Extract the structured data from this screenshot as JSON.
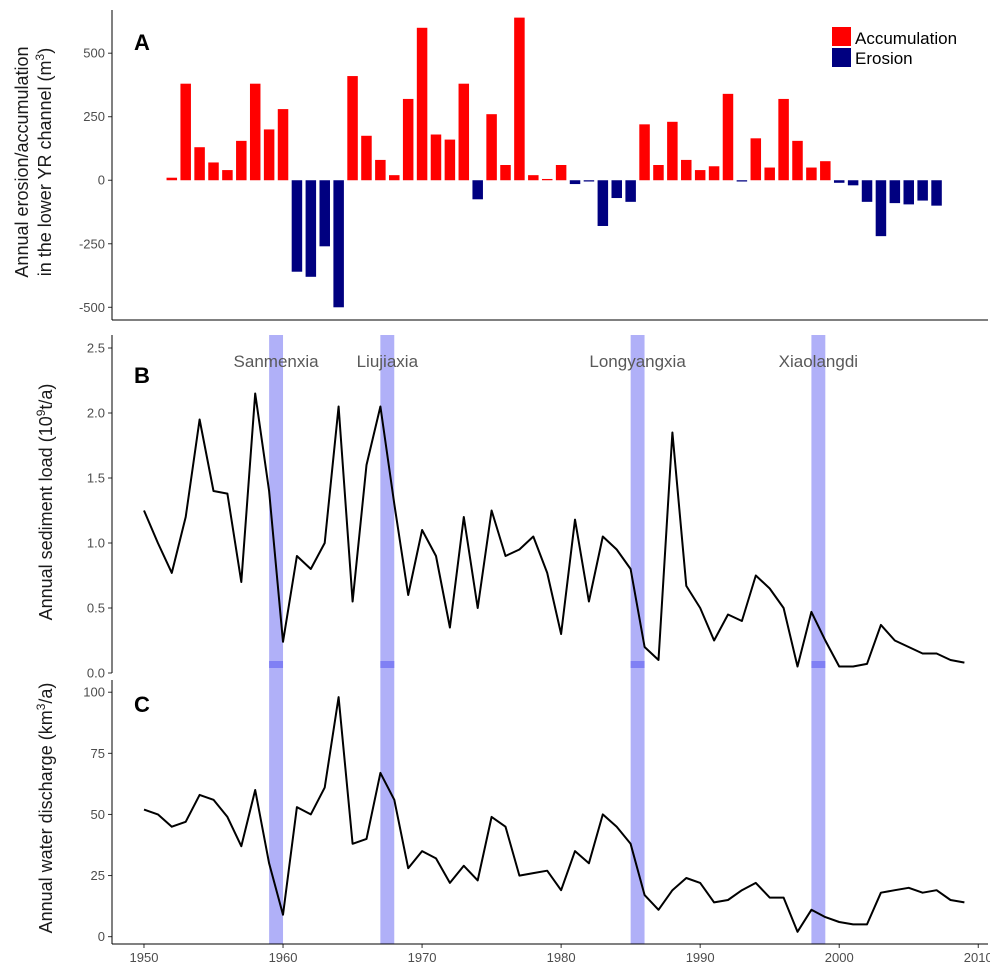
{
  "chart_data": [
    {
      "panel": "A",
      "type": "bar",
      "ylabel_line1": "Annual erosion/accumulation",
      "ylabel_line2_pre": "in the lower YR channel (m",
      "ylabel_sup": "3",
      "ylabel_post": ")",
      "ylim": [
        -550,
        670
      ],
      "yticks": [
        -500,
        -250,
        0,
        250,
        500
      ],
      "legend": [
        {
          "label": "Accumulation",
          "color": "#ff0000"
        },
        {
          "label": "Erosion",
          "color": "#000080"
        }
      ],
      "legend_position": "top-right",
      "x": [
        1952,
        1953,
        1954,
        1955,
        1956,
        1957,
        1958,
        1959,
        1960,
        1961,
        1962,
        1963,
        1964,
        1965,
        1966,
        1967,
        1968,
        1969,
        1970,
        1971,
        1972,
        1973,
        1974,
        1975,
        1976,
        1977,
        1978,
        1979,
        1980,
        1981,
        1982,
        1983,
        1984,
        1985,
        1986,
        1987,
        1988,
        1989,
        1990,
        1991,
        1992,
        1993,
        1994,
        1995,
        1996,
        1997,
        1998,
        1999,
        2000,
        2001,
        2002,
        2003,
        2004,
        2005,
        2006,
        2007,
        2008
      ],
      "values": [
        10,
        380,
        130,
        70,
        40,
        155,
        380,
        200,
        280,
        -360,
        -380,
        -260,
        -500,
        410,
        175,
        80,
        20,
        320,
        600,
        180,
        160,
        380,
        -75,
        260,
        60,
        640,
        20,
        5,
        60,
        -15,
        -5,
        -180,
        -70,
        -85,
        220,
        60,
        230,
        80,
        40,
        55,
        340,
        -5,
        165,
        50,
        320,
        155,
        50,
        75,
        -10,
        -20,
        -85,
        -220,
        -90,
        -95,
        -80,
        -100,
        0
      ]
    },
    {
      "panel": "B",
      "type": "line",
      "ylabel_pre": "Annual sediment load (10",
      "ylabel_sup": "9",
      "ylabel_post": "t/a)",
      "ylim": [
        0,
        2.6
      ],
      "yticks": [
        "0.0",
        "0.5",
        "1.0",
        "1.5",
        "2.0",
        "2.5"
      ],
      "x": [
        1950,
        1951,
        1952,
        1953,
        1954,
        1955,
        1956,
        1957,
        1958,
        1959,
        1960,
        1961,
        1962,
        1963,
        1964,
        1965,
        1966,
        1967,
        1968,
        1969,
        1970,
        1971,
        1972,
        1973,
        1974,
        1975,
        1976,
        1977,
        1978,
        1979,
        1980,
        1981,
        1982,
        1983,
        1984,
        1985,
        1986,
        1987,
        1988,
        1989,
        1990,
        1991,
        1992,
        1993,
        1994,
        1995,
        1996,
        1997,
        1998,
        1999,
        2000,
        2001,
        2002,
        2003,
        2004,
        2005,
        2006,
        2007,
        2008,
        2009
      ],
      "y": [
        1.25,
        1.0,
        0.77,
        1.2,
        1.95,
        1.4,
        1.38,
        0.7,
        2.15,
        1.4,
        0.24,
        0.9,
        0.8,
        1.0,
        2.05,
        0.55,
        1.6,
        2.05,
        1.3,
        0.6,
        1.1,
        0.9,
        0.35,
        1.2,
        0.5,
        1.25,
        0.9,
        0.95,
        1.05,
        0.77,
        0.3,
        1.18,
        0.55,
        1.05,
        0.95,
        0.8,
        0.2,
        0.1,
        1.85,
        0.67,
        0.5,
        0.25,
        0.45,
        0.4,
        0.75,
        0.65,
        0.5,
        0.05,
        0.47,
        0.25,
        0.05,
        0.05,
        0.07,
        0.37,
        0.25,
        0.2,
        0.15,
        0.15,
        0.1,
        0.08
      ]
    },
    {
      "panel": "C",
      "type": "line",
      "ylabel_pre": "Annual water discharge (km",
      "ylabel_sup": "3",
      "ylabel_post": "/a)",
      "ylim": [
        -3,
        105
      ],
      "yticks": [
        0,
        25,
        50,
        75,
        100
      ],
      "x": [
        1950,
        1951,
        1952,
        1953,
        1954,
        1955,
        1956,
        1957,
        1958,
        1959,
        1960,
        1961,
        1962,
        1963,
        1964,
        1965,
        1966,
        1967,
        1968,
        1969,
        1970,
        1971,
        1972,
        1973,
        1974,
        1975,
        1976,
        1977,
        1978,
        1979,
        1980,
        1981,
        1982,
        1983,
        1984,
        1985,
        1986,
        1987,
        1988,
        1989,
        1990,
        1991,
        1992,
        1993,
        1994,
        1995,
        1996,
        1997,
        1998,
        1999,
        2000,
        2001,
        2002,
        2003,
        2004,
        2005,
        2006,
        2007,
        2008,
        2009
      ],
      "y": [
        52,
        50,
        45,
        47,
        58,
        56,
        49,
        37,
        60,
        30,
        9,
        53,
        50,
        61,
        98,
        38,
        40,
        67,
        56,
        28,
        35,
        32,
        22,
        29,
        23,
        49,
        45,
        25,
        26,
        27,
        19,
        35,
        30,
        50,
        45,
        38,
        17,
        11,
        19,
        24,
        22,
        14,
        15,
        19,
        22,
        16,
        16,
        2,
        11,
        8,
        6,
        5,
        5,
        18,
        19,
        20,
        18,
        19,
        15,
        14
      ]
    }
  ],
  "x_axis": {
    "xlim": [
      1947.7,
      2010.7
    ],
    "ticks": [
      "1950",
      "1960",
      "1970",
      "1980",
      "1990",
      "2000",
      "2010"
    ]
  },
  "dams": [
    {
      "name": "Sanmenxia",
      "start": 1959,
      "end": 1960
    },
    {
      "name": "Liujiaxia",
      "start": 1967,
      "end": 1968
    },
    {
      "name": "Longyangxia",
      "start": 1985,
      "end": 1986
    },
    {
      "name": "Xiaolangdi",
      "start": 1998,
      "end": 1999
    }
  ],
  "colors": {
    "accumulation": "#ff0000",
    "erosion": "#000080",
    "dam_band": "#b0b0f8",
    "dam_marker": "#8080f4",
    "line": "#000000"
  }
}
